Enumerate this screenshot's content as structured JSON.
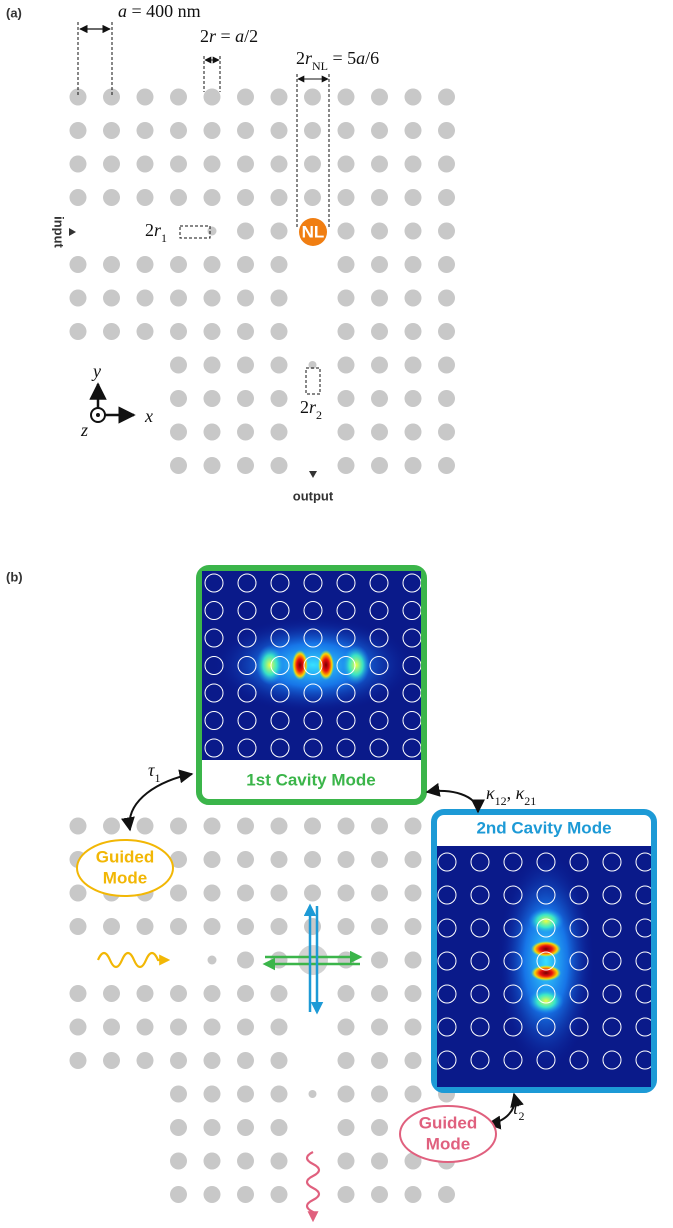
{
  "panel_a": {
    "label": "(a)",
    "lattice_constant": [
      "a",
      " = 400 nm"
    ],
    "hole_radius": [
      "2",
      "r",
      " = ",
      "a",
      "/2"
    ],
    "nl_radius": [
      "2",
      "r",
      "NL",
      " = 5",
      "a",
      "/6"
    ],
    "input": "input",
    "r1": [
      "2",
      "r",
      "1"
    ],
    "nl": "NL",
    "r2": [
      "2",
      "r",
      "2"
    ],
    "axes": {
      "y": "y",
      "x": "x",
      "z": "z"
    },
    "output": "output"
  },
  "panel_b": {
    "label": "(b)",
    "tau1": [
      "τ",
      "1"
    ],
    "cavity1": "1st Cavity Mode",
    "coupling": [
      "κ",
      "12",
      ", ",
      "κ",
      "21"
    ],
    "cavity2": "2nd Cavity Mode",
    "guided_in": [
      "Guided",
      "Mode"
    ],
    "guided_out": [
      "Guided",
      "Mode"
    ],
    "tau2": [
      "τ",
      "2"
    ]
  }
}
